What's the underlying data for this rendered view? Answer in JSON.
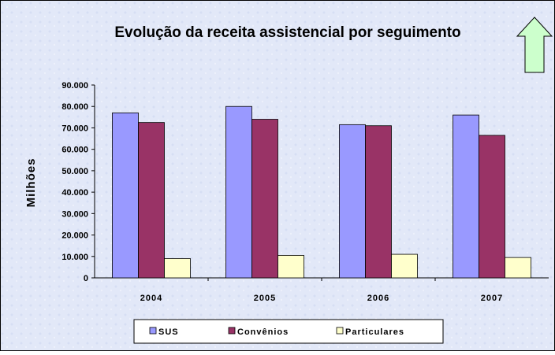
{
  "chart_data": {
    "type": "bar",
    "title": "Evolução da receita assistencial por seguimento",
    "y_label": "Milhões",
    "categories": [
      "2004",
      "2005",
      "2006",
      "2007"
    ],
    "series": [
      {
        "name": "SUS",
        "color": "#9999ff",
        "values": [
          77000,
          80000,
          71500,
          76000
        ]
      },
      {
        "name": "Convênios",
        "color": "#993366",
        "values": [
          72500,
          74000,
          71000,
          66500
        ]
      },
      {
        "name": "Particulares",
        "color": "#ffffcc",
        "values": [
          9000,
          10500,
          11000,
          9500
        ]
      }
    ],
    "ylim": [
      0,
      90000
    ],
    "yticks": [
      0,
      {
        "value": 10000,
        "label": "10.000"
      },
      {
        "value": 20000,
        "label": "20.000"
      },
      {
        "value": 30000,
        "label": "30.000"
      },
      {
        "value": 40000,
        "label": "40.000"
      },
      {
        "value": 50000,
        "label": "50.000"
      },
      {
        "value": 60000,
        "label": "60.000"
      },
      {
        "value": 70000,
        "label": "70.000"
      },
      {
        "value": 80000,
        "label": "80.000"
      },
      {
        "value": 90000,
        "label": "90.000"
      }
    ],
    "legend": "bottom"
  }
}
